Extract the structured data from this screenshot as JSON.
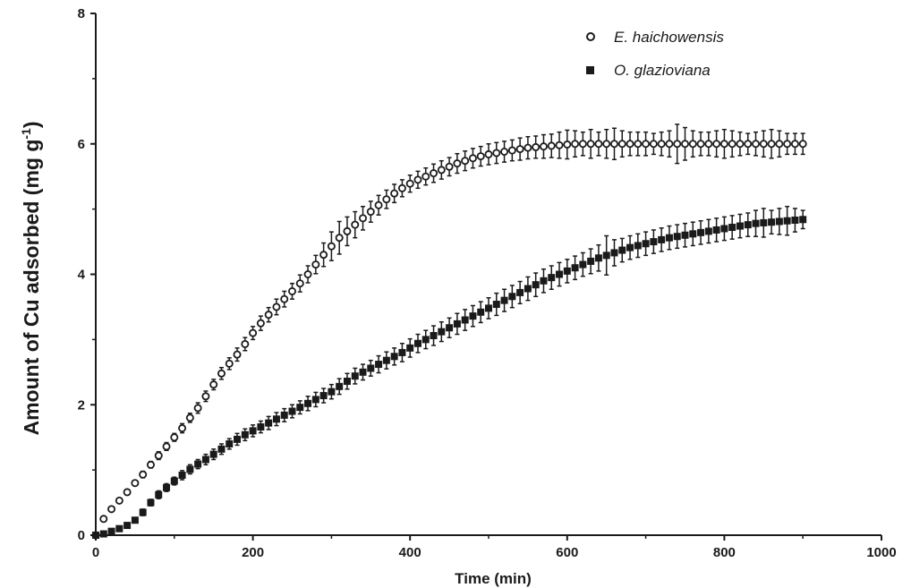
{
  "chart_data": {
    "type": "scatter",
    "xlabel": "Time (min)",
    "ylabel": "Amount of Cu adsorbed (mg g-1)",
    "ylabel_parts": {
      "main": "Amount of Cu adsorbed (mg g",
      "sup": "-1",
      "end": ")"
    },
    "xlim": [
      0,
      1000
    ],
    "ylim": [
      0,
      8
    ],
    "x_ticks": [
      "0",
      "200",
      "400",
      "600",
      "800",
      "1000"
    ],
    "y_ticks": [
      "0",
      "2",
      "4",
      "6",
      "8"
    ],
    "x_tick_values": [
      0,
      200,
      400,
      600,
      800,
      1000
    ],
    "y_tick_values": [
      0,
      2,
      4,
      6,
      8
    ],
    "grid": false,
    "legend_position": "top-right",
    "series": [
      {
        "name": "E. haichowensis",
        "marker": "open-circle",
        "color": "#1a1a1a",
        "x": [
          0,
          10,
          20,
          30,
          40,
          50,
          60,
          70,
          80,
          90,
          100,
          110,
          120,
          130,
          140,
          150,
          160,
          170,
          180,
          190,
          200,
          210,
          220,
          230,
          240,
          250,
          260,
          270,
          280,
          290,
          300,
          310,
          320,
          330,
          340,
          350,
          360,
          370,
          380,
          390,
          400,
          410,
          420,
          430,
          440,
          450,
          460,
          470,
          480,
          490,
          500,
          510,
          520,
          530,
          540,
          550,
          560,
          570,
          580,
          590,
          600,
          610,
          620,
          630,
          640,
          650,
          660,
          670,
          680,
          690,
          700,
          710,
          720,
          730,
          740,
          750,
          760,
          770,
          780,
          790,
          800,
          810,
          820,
          830,
          840,
          850,
          860,
          870,
          880,
          890,
          900
        ],
        "y": [
          0.0,
          0.25,
          0.4,
          0.53,
          0.66,
          0.8,
          0.93,
          1.08,
          1.22,
          1.36,
          1.5,
          1.64,
          1.8,
          1.95,
          2.13,
          2.31,
          2.48,
          2.63,
          2.77,
          2.93,
          3.1,
          3.25,
          3.38,
          3.5,
          3.62,
          3.74,
          3.86,
          4.0,
          4.15,
          4.3,
          4.43,
          4.56,
          4.66,
          4.76,
          4.86,
          4.96,
          5.06,
          5.15,
          5.24,
          5.32,
          5.39,
          5.45,
          5.5,
          5.55,
          5.6,
          5.65,
          5.7,
          5.74,
          5.78,
          5.81,
          5.84,
          5.86,
          5.88,
          5.9,
          5.92,
          5.94,
          5.95,
          5.96,
          5.97,
          5.98,
          5.99,
          6.0,
          6.0,
          6.0,
          6.0,
          6.0,
          6.0,
          6.0,
          6.0,
          6.0,
          6.0,
          6.0,
          6.0,
          6.0,
          6.0,
          6.0,
          6.0,
          6.0,
          6.0,
          6.0,
          6.0,
          6.0,
          6.0,
          6.0,
          6.0,
          6.0,
          6.0,
          6.0,
          6.0,
          6.0,
          6.0
        ],
        "err": [
          0.0,
          0.02,
          0.03,
          0.03,
          0.04,
          0.04,
          0.05,
          0.05,
          0.06,
          0.06,
          0.06,
          0.07,
          0.07,
          0.08,
          0.08,
          0.08,
          0.09,
          0.09,
          0.1,
          0.1,
          0.1,
          0.11,
          0.11,
          0.12,
          0.12,
          0.12,
          0.13,
          0.13,
          0.14,
          0.18,
          0.22,
          0.25,
          0.22,
          0.2,
          0.18,
          0.16,
          0.15,
          0.14,
          0.14,
          0.13,
          0.13,
          0.13,
          0.13,
          0.14,
          0.14,
          0.14,
          0.15,
          0.15,
          0.15,
          0.15,
          0.16,
          0.16,
          0.16,
          0.16,
          0.17,
          0.17,
          0.17,
          0.18,
          0.18,
          0.2,
          0.22,
          0.2,
          0.18,
          0.22,
          0.18,
          0.22,
          0.24,
          0.2,
          0.18,
          0.18,
          0.18,
          0.16,
          0.18,
          0.2,
          0.3,
          0.25,
          0.2,
          0.18,
          0.18,
          0.2,
          0.22,
          0.2,
          0.18,
          0.16,
          0.18,
          0.2,
          0.22,
          0.2,
          0.16,
          0.16,
          0.16
        ]
      },
      {
        "name": "O. glazioviana",
        "marker": "filled-square",
        "color": "#1a1a1a",
        "x": [
          0,
          10,
          20,
          30,
          40,
          50,
          60,
          70,
          80,
          90,
          100,
          110,
          120,
          130,
          140,
          150,
          160,
          170,
          180,
          190,
          200,
          210,
          220,
          230,
          240,
          250,
          260,
          270,
          280,
          290,
          300,
          310,
          320,
          330,
          340,
          350,
          360,
          370,
          380,
          390,
          400,
          410,
          420,
          430,
          440,
          450,
          460,
          470,
          480,
          490,
          500,
          510,
          520,
          530,
          540,
          550,
          560,
          570,
          580,
          590,
          600,
          610,
          620,
          630,
          640,
          650,
          660,
          670,
          680,
          690,
          700,
          710,
          720,
          730,
          740,
          750,
          760,
          770,
          780,
          790,
          800,
          810,
          820,
          830,
          840,
          850,
          860,
          870,
          880,
          890,
          900
        ],
        "y": [
          0.0,
          0.02,
          0.06,
          0.1,
          0.15,
          0.23,
          0.35,
          0.5,
          0.62,
          0.73,
          0.83,
          0.92,
          1.01,
          1.09,
          1.16,
          1.24,
          1.32,
          1.4,
          1.47,
          1.54,
          1.6,
          1.66,
          1.72,
          1.78,
          1.84,
          1.9,
          1.96,
          2.02,
          2.08,
          2.14,
          2.2,
          2.28,
          2.36,
          2.44,
          2.5,
          2.56,
          2.62,
          2.68,
          2.74,
          2.8,
          2.87,
          2.94,
          3.0,
          3.06,
          3.12,
          3.18,
          3.24,
          3.3,
          3.36,
          3.42,
          3.48,
          3.54,
          3.6,
          3.66,
          3.72,
          3.78,
          3.84,
          3.9,
          3.95,
          4.0,
          4.05,
          4.1,
          4.15,
          4.2,
          4.25,
          4.29,
          4.33,
          4.37,
          4.41,
          4.44,
          4.47,
          4.5,
          4.53,
          4.56,
          4.58,
          4.6,
          4.62,
          4.64,
          4.66,
          4.68,
          4.7,
          4.72,
          4.74,
          4.76,
          4.78,
          4.79,
          4.8,
          4.81,
          4.82,
          4.83,
          4.84
        ],
        "err": [
          0.0,
          0.01,
          0.02,
          0.03,
          0.03,
          0.04,
          0.05,
          0.05,
          0.06,
          0.06,
          0.06,
          0.07,
          0.07,
          0.07,
          0.08,
          0.08,
          0.08,
          0.08,
          0.09,
          0.09,
          0.09,
          0.09,
          0.1,
          0.1,
          0.1,
          0.1,
          0.1,
          0.11,
          0.11,
          0.11,
          0.11,
          0.12,
          0.12,
          0.12,
          0.12,
          0.12,
          0.13,
          0.13,
          0.13,
          0.14,
          0.14,
          0.14,
          0.14,
          0.15,
          0.15,
          0.15,
          0.16,
          0.16,
          0.16,
          0.16,
          0.16,
          0.17,
          0.17,
          0.17,
          0.17,
          0.18,
          0.18,
          0.18,
          0.18,
          0.18,
          0.18,
          0.18,
          0.18,
          0.19,
          0.2,
          0.3,
          0.2,
          0.18,
          0.18,
          0.18,
          0.18,
          0.18,
          0.18,
          0.18,
          0.18,
          0.18,
          0.18,
          0.18,
          0.18,
          0.18,
          0.18,
          0.18,
          0.18,
          0.18,
          0.2,
          0.22,
          0.18,
          0.2,
          0.22,
          0.18,
          0.14
        ]
      }
    ]
  }
}
